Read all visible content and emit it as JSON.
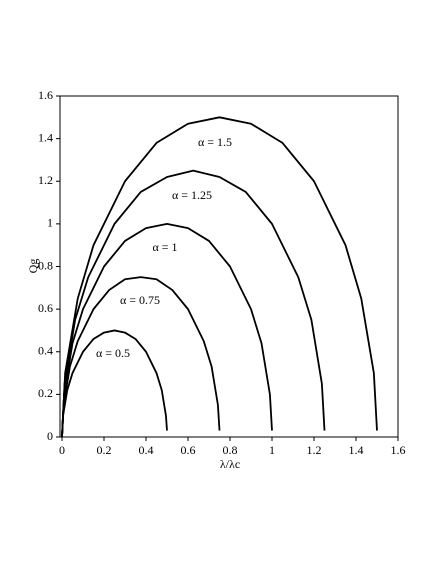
{
  "chart_data": {
    "type": "line",
    "x_label": "λ/λc",
    "y_label": "Qg",
    "xlim": [
      0,
      1.6
    ],
    "ylim": [
      0,
      1.6
    ],
    "xticks": [
      0,
      0.2,
      0.4,
      0.6,
      0.8,
      1,
      1.2,
      1.4,
      1.6
    ],
    "yticks": [
      0,
      0.2,
      0.4,
      0.6,
      0.8,
      1,
      1.2,
      1.4,
      1.6
    ],
    "grid": false,
    "series": [
      {
        "name": "α = 0.5",
        "color": "#000000",
        "x": [
          0,
          0.005,
          0.025,
          0.05,
          0.1,
          0.15,
          0.2,
          0.25,
          0.3,
          0.35,
          0.4,
          0.45,
          0.475,
          0.495,
          0.5
        ],
        "values": [
          0,
          0.1,
          0.22,
          0.3,
          0.4,
          0.46,
          0.49,
          0.5,
          0.49,
          0.46,
          0.4,
          0.3,
          0.22,
          0.1,
          0.03
        ]
      },
      {
        "name": "α = 0.75",
        "color": "#000000",
        "x": [
          0,
          0.0075,
          0.0375,
          0.075,
          0.15,
          0.225,
          0.3,
          0.375,
          0.45,
          0.525,
          0.6,
          0.675,
          0.7125,
          0.7425,
          0.75
        ],
        "values": [
          0,
          0.15,
          0.33,
          0.45,
          0.6,
          0.69,
          0.74,
          0.75,
          0.74,
          0.69,
          0.6,
          0.45,
          0.33,
          0.15,
          0.03
        ]
      },
      {
        "name": "α = 1",
        "color": "#000000",
        "x": [
          0,
          0.01,
          0.05,
          0.1,
          0.2,
          0.3,
          0.4,
          0.5,
          0.6,
          0.7,
          0.8,
          0.9,
          0.95,
          0.99,
          1
        ],
        "values": [
          0,
          0.2,
          0.44,
          0.6,
          0.8,
          0.92,
          0.98,
          1,
          0.98,
          0.92,
          0.8,
          0.6,
          0.44,
          0.2,
          0.03
        ]
      },
      {
        "name": "α = 1.25",
        "color": "#000000",
        "x": [
          0,
          0.0125,
          0.0625,
          0.125,
          0.25,
          0.375,
          0.5,
          0.625,
          0.75,
          0.875,
          1,
          1.125,
          1.1875,
          1.2375,
          1.25
        ],
        "values": [
          0,
          0.25,
          0.55,
          0.75,
          1,
          1.15,
          1.22,
          1.25,
          1.22,
          1.15,
          1,
          0.75,
          0.55,
          0.25,
          0.03
        ]
      },
      {
        "name": "α = 1.5",
        "color": "#000000",
        "x": [
          0,
          0.015,
          0.075,
          0.15,
          0.3,
          0.45,
          0.6,
          0.75,
          0.9,
          1.05,
          1.2,
          1.35,
          1.425,
          1.485,
          1.5
        ],
        "values": [
          0,
          0.3,
          0.65,
          0.9,
          1.2,
          1.38,
          1.47,
          1.5,
          1.47,
          1.38,
          1.2,
          0.9,
          0.65,
          0.3,
          0.03
        ]
      }
    ]
  }
}
